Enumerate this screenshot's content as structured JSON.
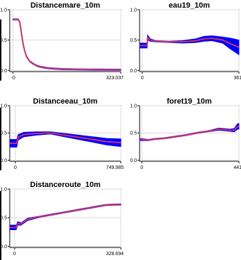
{
  "chart_data": [
    {
      "type": "line",
      "title": "Distancemare_10m",
      "xlabel": "",
      "ylabel": "",
      "xlim": [
        -10,
        323.037
      ],
      "ylim": [
        -0.02,
        1.0
      ],
      "x_tick_labels": [
        "-0",
        "323.037"
      ],
      "x_ticks": [
        0,
        323.037
      ],
      "y_ticks": [
        0,
        0.5,
        1.0
      ],
      "y_tick_labels": [
        "0.0",
        "0.5",
        "1.0"
      ],
      "grid": true,
      "series": [
        {
          "values_x": [
            0,
            15,
            20,
            25,
            30,
            35,
            40,
            50,
            60,
            70,
            80,
            100,
            120,
            150,
            200,
            250,
            323.037
          ],
          "mean": [
            0.84,
            0.84,
            0.8,
            0.62,
            0.44,
            0.32,
            0.23,
            0.15,
            0.11,
            0.08,
            0.06,
            0.04,
            0.03,
            0.02,
            0.015,
            0.012,
            0.01
          ],
          "band": [
            0.01,
            0.01,
            0.01,
            0.01,
            0.01,
            0.01,
            0.01,
            0.01,
            0.01,
            0.01,
            0.01,
            0.01,
            0.01,
            0.01,
            0.01,
            0.01,
            0.01
          ]
        }
      ]
    },
    {
      "type": "line",
      "title": "eau19_10m",
      "xlabel": "",
      "ylabel": "",
      "xlim": [
        -10,
        361
      ],
      "ylim": [
        -0.02,
        1.0
      ],
      "x_tick_labels": [
        "0",
        "361"
      ],
      "x_ticks": [
        0,
        361
      ],
      "y_ticks": [
        0,
        0.5,
        1.0
      ],
      "y_tick_labels": [
        "0.0",
        "0.5",
        "1.0"
      ],
      "grid": true,
      "series": [
        {
          "values_x": [
            -10,
            18,
            20,
            30,
            50,
            100,
            150,
            200,
            230,
            260,
            300,
            330,
            361
          ],
          "mean": [
            0.41,
            0.41,
            0.54,
            0.5,
            0.48,
            0.47,
            0.47,
            0.49,
            0.52,
            0.53,
            0.5,
            0.44,
            0.38
          ],
          "band": [
            0.04,
            0.04,
            0.04,
            0.02,
            0.01,
            0.01,
            0.02,
            0.03,
            0.04,
            0.04,
            0.05,
            0.09,
            0.12
          ]
        }
      ]
    },
    {
      "type": "line",
      "title": "Distanceeau_10m",
      "xlabel": "",
      "ylabel": "",
      "xlim": [
        -40,
        749.985
      ],
      "ylim": [
        -0.02,
        1.0
      ],
      "x_tick_labels": [
        "0",
        "749.985"
      ],
      "x_ticks": [
        0,
        749.985
      ],
      "y_ticks": [
        0,
        0.5,
        1.0
      ],
      "y_tick_labels": [
        "0.0",
        "0.5",
        "1.0"
      ],
      "grid": true,
      "series": [
        {
          "values_x": [
            -40,
            10,
            20,
            60,
            150,
            250,
            350,
            450,
            550,
            650,
            749.985
          ],
          "mean": [
            0.31,
            0.31,
            0.42,
            0.47,
            0.49,
            0.5,
            0.46,
            0.42,
            0.38,
            0.34,
            0.32
          ],
          "band": [
            0.07,
            0.07,
            0.05,
            0.04,
            0.03,
            0.02,
            0.03,
            0.04,
            0.05,
            0.06,
            0.07
          ]
        }
      ]
    },
    {
      "type": "line",
      "title": "foret19_10m",
      "xlabel": "",
      "ylabel": "",
      "xlim": [
        -10,
        441
      ],
      "ylim": [
        -0.02,
        1.0
      ],
      "x_tick_labels": [
        "0",
        "441"
      ],
      "x_ticks": [
        0,
        441
      ],
      "y_ticks": [
        0,
        0.5,
        1.0
      ],
      "y_tick_labels": [
        "0.0",
        "0.5",
        "1.0"
      ],
      "grid": true,
      "series": [
        {
          "values_x": [
            -10,
            30,
            60,
            100,
            150,
            200,
            250,
            300,
            350,
            400,
            420,
            435,
            441
          ],
          "mean": [
            0.38,
            0.37,
            0.39,
            0.4,
            0.43,
            0.46,
            0.5,
            0.53,
            0.57,
            0.55,
            0.55,
            0.62,
            0.62
          ],
          "band": [
            0.02,
            0.01,
            0.01,
            0.01,
            0.01,
            0.01,
            0.01,
            0.01,
            0.02,
            0.02,
            0.03,
            0.05,
            0.05
          ]
        }
      ]
    },
    {
      "type": "line",
      "title": "Distanceroute_10m",
      "xlabel": "",
      "ylabel": "",
      "xlim": [
        -15,
        328.694
      ],
      "ylim": [
        -0.02,
        1.0
      ],
      "x_tick_labels": [
        "0",
        "328.694"
      ],
      "x_ticks": [
        0,
        328.694
      ],
      "y_ticks": [
        0,
        0.5,
        1.0
      ],
      "y_tick_labels": [
        "0.0",
        "0.5",
        "1.0"
      ],
      "grid": true,
      "series": [
        {
          "values_x": [
            -15,
            5,
            10,
            20,
            40,
            80,
            120,
            160,
            200,
            240,
            280,
            310,
            328.694
          ],
          "mean": [
            0.33,
            0.33,
            0.4,
            0.39,
            0.47,
            0.52,
            0.56,
            0.6,
            0.64,
            0.68,
            0.72,
            0.73,
            0.73
          ],
          "band": [
            0.04,
            0.04,
            0.03,
            0.02,
            0.02,
            0.01,
            0.01,
            0.01,
            0.01,
            0.01,
            0.01,
            0.01,
            0.01
          ]
        }
      ]
    }
  ],
  "colors": {
    "band": "#0000ff",
    "line": "#cc3366",
    "grid": "#d9d9d9"
  }
}
